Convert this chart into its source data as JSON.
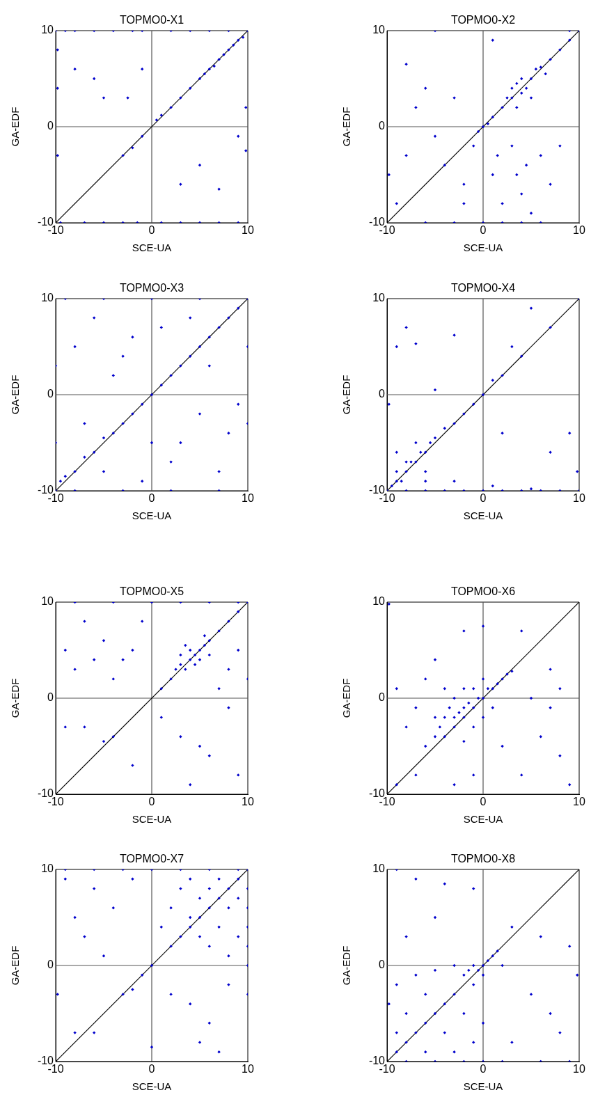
{
  "chart_data": [
    {
      "type": "scatter",
      "title": "TOPMO0-X1",
      "xlabel": "SCE-UA",
      "ylabel": "GA-EDF",
      "xlim": [
        -10,
        10
      ],
      "ylim": [
        -10,
        10
      ],
      "xticks": [
        -10,
        0,
        10
      ],
      "yticks": [
        -10,
        0,
        10
      ],
      "series": [
        {
          "type": "line",
          "color": "#555555",
          "x": [
            0,
            0
          ],
          "values": [
            -10,
            10
          ]
        },
        {
          "type": "line",
          "color": "#555555",
          "x": [
            -10,
            10
          ],
          "values": [
            0,
            0
          ]
        },
        {
          "color": "#0000cc",
          "marker": "diamond",
          "x": [
            -10,
            -9,
            -8,
            -6,
            -4,
            -2,
            -1,
            2,
            4,
            6,
            8,
            -9.5,
            -7,
            -5,
            -3,
            -1.5,
            1,
            3,
            5,
            7,
            9,
            1,
            2,
            3,
            4,
            5,
            5.5,
            6,
            6.5,
            7,
            7.5,
            8,
            8.5,
            9,
            9.5,
            10,
            -3,
            -2,
            -1,
            0.5,
            -8,
            -6,
            -5,
            -2.5,
            -1,
            3,
            5,
            7,
            9,
            -9.8,
            -9.8,
            -9.8,
            9.8,
            9.8
          ],
          "values": [
            10,
            10,
            10,
            10,
            10,
            10,
            10,
            10,
            10,
            10,
            10,
            -10,
            -10,
            -10,
            -10,
            -10,
            -10,
            -10,
            -10,
            -10,
            -10,
            1.2,
            2,
            3,
            4,
            5,
            5.5,
            6,
            6.3,
            7,
            7.5,
            8,
            8.5,
            9,
            9.3,
            10,
            -3,
            -2.2,
            -1,
            0.7,
            6,
            5,
            3,
            3,
            6,
            -6,
            -4,
            -6.5,
            -1,
            4,
            -3,
            8,
            2,
            -2.5
          ]
        },
        {
          "type": "line",
          "color": "#000000",
          "x": [
            -10,
            10
          ],
          "values": [
            -10,
            10
          ]
        }
      ]
    },
    {
      "type": "scatter",
      "title": "TOPMO0-X2",
      "xlabel": "SCE-UA",
      "ylabel": "GA-EDF",
      "xlim": [
        -10,
        10
      ],
      "ylim": [
        -10,
        10
      ],
      "xticks": [
        -10,
        0,
        10
      ],
      "yticks": [
        -10,
        0,
        10
      ],
      "series": [
        {
          "type": "line",
          "color": "#555555",
          "x": [
            0,
            0
          ],
          "values": [
            -10,
            10
          ]
        },
        {
          "type": "line",
          "color": "#555555",
          "x": [
            -10,
            10
          ],
          "values": [
            0,
            0
          ]
        },
        {
          "color": "#0000cc",
          "marker": "diamond",
          "x": [
            -9,
            -8,
            -7,
            -6,
            -5,
            -4,
            -3,
            -2,
            -1,
            -0.5,
            0,
            0.5,
            1,
            1.5,
            2,
            2.5,
            3,
            3,
            3.5,
            3.5,
            4,
            4,
            4.5,
            5,
            5,
            5.5,
            6,
            6.5,
            7,
            8,
            9,
            10,
            3,
            3.5,
            4,
            4.5,
            5,
            2,
            1,
            6,
            7,
            -6,
            -3,
            0,
            2,
            4,
            6,
            9,
            -5,
            1,
            -8,
            8,
            -9.8,
            -2
          ],
          "values": [
            -8,
            -3,
            2,
            4,
            -1,
            -4,
            3,
            -6,
            -2,
            -0.5,
            0,
            0.3,
            1,
            -3,
            2,
            3,
            3,
            4,
            2,
            4.5,
            3.5,
            5,
            4,
            5,
            3,
            6,
            6.2,
            5.5,
            7,
            8,
            9,
            10,
            -2,
            -5,
            -7,
            -4,
            -9,
            -8,
            -5,
            -3,
            -6,
            -10,
            -10,
            -10,
            -10,
            -10,
            -10,
            10,
            10,
            9,
            6.5,
            -2,
            -5,
            -8
          ]
        },
        {
          "type": "line",
          "color": "#000000",
          "x": [
            -10,
            10
          ],
          "values": [
            -10,
            10
          ]
        }
      ]
    },
    {
      "type": "scatter",
      "title": "TOPMO0-X3",
      "xlabel": "SCE-UA",
      "ylabel": "GA-EDF",
      "xlim": [
        -10,
        10
      ],
      "ylim": [
        -10,
        10
      ],
      "xticks": [
        -10,
        0,
        10
      ],
      "yticks": [
        -10,
        0,
        10
      ],
      "series": [
        {
          "type": "line",
          "color": "#555555",
          "x": [
            0,
            0
          ],
          "values": [
            -10,
            10
          ]
        },
        {
          "type": "line",
          "color": "#555555",
          "x": [
            -10,
            10
          ],
          "values": [
            0,
            0
          ]
        },
        {
          "color": "#0000cc",
          "marker": "diamond",
          "x": [
            -10,
            -9.5,
            -9,
            -8,
            -7,
            -6,
            -5,
            -4,
            -3,
            -2,
            -1,
            0,
            1,
            2,
            3,
            4,
            5,
            6,
            7,
            8,
            9,
            10,
            -8,
            -6,
            -4,
            -2,
            1,
            3,
            5,
            7,
            -7,
            -5,
            2,
            6,
            8,
            -3,
            0,
            4,
            -9,
            -5,
            0,
            5,
            -8,
            -3,
            2,
            7,
            -10,
            -10,
            10,
            10,
            -1,
            9
          ],
          "values": [
            -10,
            -9,
            -8.5,
            -8,
            -6.5,
            -6,
            -4.5,
            -4,
            -3,
            -2,
            -1,
            0,
            1,
            2,
            3,
            4,
            5,
            6,
            7,
            8,
            9,
            10,
            5,
            8,
            2,
            6,
            7,
            -5,
            -2,
            -8,
            -3,
            -8,
            -7,
            3,
            -4,
            4,
            -5,
            8,
            10,
            10,
            10,
            10,
            -10,
            -10,
            -10,
            -10,
            -5,
            3,
            -3,
            5,
            -9,
            -1
          ]
        },
        {
          "type": "line",
          "color": "#000000",
          "x": [
            -10,
            10
          ],
          "values": [
            -10,
            10
          ]
        }
      ]
    },
    {
      "type": "scatter",
      "title": "TOPMO0-X4",
      "xlabel": "SCE-UA",
      "ylabel": "GA-EDF",
      "xlim": [
        -10,
        10
      ],
      "ylim": [
        -10,
        10
      ],
      "xticks": [
        -10,
        0,
        10
      ],
      "yticks": [
        -10,
        0,
        10
      ],
      "series": [
        {
          "type": "line",
          "color": "#555555",
          "x": [
            0,
            0
          ],
          "values": [
            -10,
            10
          ]
        },
        {
          "type": "line",
          "color": "#555555",
          "x": [
            -10,
            10
          ],
          "values": [
            0,
            0
          ]
        },
        {
          "color": "#0000cc",
          "marker": "diamond",
          "x": [
            -10,
            -9.5,
            -9,
            -9,
            -8.5,
            -8,
            -8,
            -7.5,
            -7,
            -6.5,
            -6,
            -5.5,
            -5,
            -4,
            -3,
            -2,
            -1,
            0,
            1,
            2,
            4,
            7,
            10,
            -8,
            -6,
            -4,
            -2,
            0,
            2,
            4,
            6,
            8,
            10,
            -6,
            -3,
            1,
            5,
            -9,
            -8,
            -7,
            -3,
            5,
            -5,
            2,
            9,
            7,
            9.8,
            -9.8,
            3,
            -7,
            -9,
            -6
          ],
          "values": [
            -10,
            -9.5,
            -9,
            -8,
            -9,
            -8,
            -7,
            -7,
            -7,
            -6,
            -6,
            -5,
            -4.5,
            -3.5,
            -3,
            -2,
            -1,
            0,
            1.5,
            2,
            4,
            7,
            10,
            -10,
            -10,
            -10,
            -10,
            -10,
            -10,
            -10,
            -10,
            -10,
            -10,
            -9,
            -9,
            -9.5,
            -9.8,
            5,
            7,
            5.3,
            6.2,
            9,
            0.5,
            -4,
            -4,
            -6,
            -8,
            -1,
            5,
            -5,
            -6,
            -8
          ]
        },
        {
          "type": "line",
          "color": "#000000",
          "x": [
            -10,
            10
          ],
          "values": [
            -10,
            10
          ]
        }
      ]
    },
    {
      "type": "scatter",
      "title": "TOPMO0-X5",
      "xlabel": "SCE-UA",
      "ylabel": "GA-EDF",
      "xlim": [
        -10,
        10
      ],
      "ylim": [
        -10,
        10
      ],
      "xticks": [
        -10,
        0,
        10
      ],
      "yticks": [
        -10,
        0,
        10
      ],
      "series": [
        {
          "type": "line",
          "color": "#555555",
          "x": [
            0,
            0
          ],
          "values": [
            -10,
            10
          ]
        },
        {
          "type": "line",
          "color": "#555555",
          "x": [
            -10,
            10
          ],
          "values": [
            0,
            0
          ]
        },
        {
          "color": "#0000cc",
          "marker": "diamond",
          "x": [
            2,
            2.5,
            3,
            3,
            3.5,
            4,
            4,
            4.5,
            5,
            5,
            5.5,
            6,
            6,
            3.5,
            4.5,
            5.5,
            7,
            8,
            9,
            10,
            1,
            -9,
            -8,
            -7,
            -6,
            -5,
            -4,
            -3,
            -2,
            -1,
            -8,
            -4,
            0,
            3,
            6,
            9,
            8,
            9,
            10,
            7,
            -9,
            -7,
            -4,
            -2,
            1,
            3,
            4,
            6,
            8,
            9,
            -5,
            5
          ],
          "values": [
            2,
            3,
            3.5,
            4.5,
            3,
            4,
            5,
            4.5,
            5,
            4,
            5.5,
            6,
            4.5,
            5.5,
            3.5,
            6.5,
            7,
            8,
            9,
            10,
            1,
            5,
            3,
            8,
            4,
            6,
            2,
            4,
            5,
            8,
            10,
            10,
            10,
            10,
            10,
            10,
            3,
            5,
            2,
            1,
            -3,
            -3,
            -4,
            -7,
            -2,
            -4,
            -9,
            -6,
            -1,
            -8,
            -4.5,
            -5
          ]
        },
        {
          "type": "line",
          "color": "#000000",
          "x": [
            -10,
            10
          ],
          "values": [
            -10,
            10
          ]
        }
      ]
    },
    {
      "type": "scatter",
      "title": "TOPMO0-X6",
      "xlabel": "SCE-UA",
      "ylabel": "GA-EDF",
      "xlim": [
        -10,
        10
      ],
      "ylim": [
        -10,
        10
      ],
      "xticks": [
        -10,
        0,
        10
      ],
      "yticks": [
        -10,
        0,
        10
      ],
      "series": [
        {
          "type": "line",
          "color": "#555555",
          "x": [
            0,
            0
          ],
          "values": [
            -10,
            10
          ]
        },
        {
          "type": "line",
          "color": "#555555",
          "x": [
            -10,
            10
          ],
          "values": [
            0,
            0
          ]
        },
        {
          "color": "#0000cc",
          "marker": "diamond",
          "x": [
            -5,
            -4.5,
            -4,
            -4,
            -3.5,
            -3,
            -3,
            -3,
            -2.5,
            -2,
            -2,
            -2,
            -1.5,
            -1,
            -1,
            -1,
            -0.5,
            0,
            0,
            0.5,
            1,
            1,
            1.5,
            2,
            2.5,
            3,
            -4,
            -5,
            -2,
            0,
            -7,
            -9,
            -8,
            -6,
            5,
            7,
            8,
            6,
            9,
            -9,
            -7,
            -3,
            -1,
            -2,
            0,
            -5,
            -9.8,
            4,
            8,
            4,
            2,
            7,
            -6
          ],
          "values": [
            -4,
            -3,
            -2,
            -4,
            -1,
            -3,
            -2,
            0,
            -1.5,
            -2,
            -1,
            1,
            -0.5,
            -1,
            -3,
            1,
            0,
            0,
            -2,
            1,
            1,
            -1,
            1.5,
            2,
            2.5,
            2.8,
            1,
            -2,
            -4.5,
            2,
            -1,
            1,
            -3,
            2,
            0,
            -1,
            1,
            -4,
            -9,
            -9,
            -8,
            -9,
            -8,
            7,
            7.5,
            4,
            9.8,
            7,
            -6,
            -8,
            -5,
            3,
            -5
          ]
        },
        {
          "type": "line",
          "color": "#000000",
          "x": [
            -10,
            10
          ],
          "values": [
            -10,
            10
          ]
        }
      ]
    },
    {
      "type": "scatter",
      "title": "TOPMO0-X7",
      "xlabel": "SCE-UA",
      "ylabel": "GA-EDF",
      "xlim": [
        -10,
        10
      ],
      "ylim": [
        -10,
        10
      ],
      "xticks": [
        -10,
        0,
        10
      ],
      "yticks": [
        -10,
        0,
        10
      ],
      "series": [
        {
          "type": "line",
          "color": "#555555",
          "x": [
            0,
            0
          ],
          "values": [
            -10,
            10
          ]
        },
        {
          "type": "line",
          "color": "#555555",
          "x": [
            -10,
            10
          ],
          "values": [
            0,
            0
          ]
        },
        {
          "color": "#0000cc",
          "marker": "diamond",
          "x": [
            2,
            3,
            4,
            4,
            5,
            5,
            6,
            6,
            7,
            7,
            8,
            8,
            9,
            9,
            10,
            10,
            10,
            10,
            10,
            10,
            10,
            9,
            8,
            7,
            6,
            5,
            4,
            3,
            2,
            1,
            0,
            -1,
            -2,
            -4,
            -6,
            -8,
            -9,
            -7,
            -5,
            -3,
            -9,
            -6,
            -3,
            0,
            3,
            6,
            9,
            2,
            4,
            6,
            8,
            5,
            7,
            -6,
            -8,
            -2,
            0,
            -9.8
          ],
          "values": [
            2,
            3,
            4,
            5,
            5,
            7,
            6,
            8,
            7,
            9,
            8,
            6,
            9,
            7,
            10,
            8,
            6,
            4,
            2,
            0,
            -3,
            3,
            1,
            4,
            2,
            3,
            9,
            8,
            6,
            4,
            0,
            -1,
            9,
            6,
            8,
            5,
            9,
            3,
            1,
            -3,
            10,
            10,
            10,
            10,
            10,
            10,
            10,
            -3,
            -4,
            -6,
            -2,
            -8,
            -9,
            -7,
            -7,
            -2.5,
            -8.5,
            -3
          ]
        },
        {
          "type": "line",
          "color": "#000000",
          "x": [
            -10,
            10
          ],
          "values": [
            -10,
            10
          ]
        }
      ]
    },
    {
      "type": "scatter",
      "title": "TOPMO0-X8",
      "xlabel": "SCE-UA",
      "ylabel": "GA-EDF",
      "xlim": [
        -10,
        10
      ],
      "ylim": [
        -10,
        10
      ],
      "xticks": [
        -10,
        0,
        10
      ],
      "yticks": [
        -10,
        0,
        10
      ],
      "series": [
        {
          "type": "line",
          "color": "#555555",
          "x": [
            0,
            0
          ],
          "values": [
            -10,
            10
          ]
        },
        {
          "type": "line",
          "color": "#555555",
          "x": [
            -10,
            10
          ],
          "values": [
            0,
            0
          ]
        },
        {
          "color": "#0000cc",
          "marker": "diamond",
          "x": [
            -2,
            -1.5,
            -1,
            -0.5,
            0,
            0.5,
            1,
            1.5,
            0,
            -1,
            -3,
            -4,
            -5,
            -6,
            -7,
            -8,
            -9,
            -3,
            -5,
            -7,
            -9,
            -8,
            -6,
            -4,
            -2,
            -1,
            0,
            -3,
            -6,
            -9,
            -9.8,
            -8,
            -5,
            -2,
            0,
            2,
            6,
            9,
            -9,
            -7,
            -4,
            -1,
            -5,
            -8,
            3,
            5,
            7,
            9,
            8,
            3,
            2,
            6,
            9.8
          ],
          "values": [
            -1,
            -0.5,
            0,
            -0.5,
            0,
            0.5,
            1,
            1.5,
            -1,
            -2,
            -3,
            -4,
            -5,
            -6,
            -7,
            -8,
            -9,
            0,
            -0.5,
            -1,
            -2,
            -5,
            -3,
            -7,
            -5,
            -8,
            -6,
            -9,
            -9,
            -7,
            -4,
            -10,
            -10,
            -10,
            -10,
            -10,
            -10,
            -10,
            10,
            9,
            8.5,
            8,
            5,
            3,
            4,
            -3,
            -5,
            2,
            -7,
            -8,
            0,
            3,
            -1
          ]
        },
        {
          "type": "line",
          "color": "#000000",
          "x": [
            -10,
            10
          ],
          "values": [
            -10,
            10
          ]
        }
      ]
    }
  ]
}
